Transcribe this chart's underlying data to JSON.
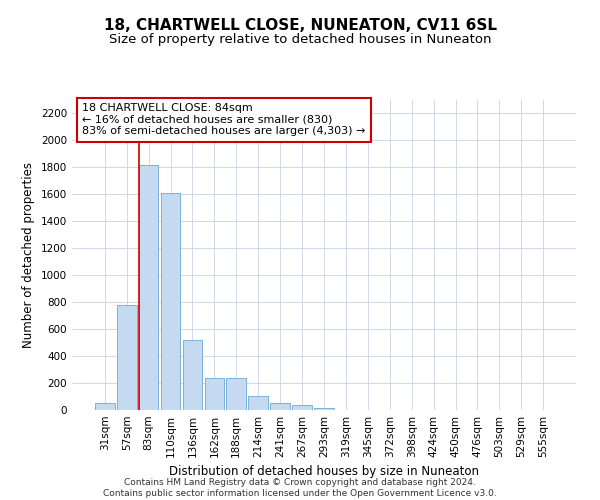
{
  "title": "18, CHARTWELL CLOSE, NUNEATON, CV11 6SL",
  "subtitle": "Size of property relative to detached houses in Nuneaton",
  "xlabel": "Distribution of detached houses by size in Nuneaton",
  "ylabel": "Number of detached properties",
  "categories": [
    "31sqm",
    "57sqm",
    "83sqm",
    "110sqm",
    "136sqm",
    "162sqm",
    "188sqm",
    "214sqm",
    "241sqm",
    "267sqm",
    "293sqm",
    "319sqm",
    "345sqm",
    "372sqm",
    "398sqm",
    "424sqm",
    "450sqm",
    "476sqm",
    "503sqm",
    "529sqm",
    "555sqm"
  ],
  "values": [
    55,
    780,
    1820,
    1610,
    520,
    240,
    235,
    105,
    55,
    38,
    18,
    0,
    0,
    0,
    0,
    0,
    0,
    0,
    0,
    0,
    0
  ],
  "bar_color": "#c5d9f0",
  "bar_edge_color": "#6aabd2",
  "vline_color": "#cc0000",
  "annotation_text": "18 CHARTWELL CLOSE: 84sqm\n← 16% of detached houses are smaller (830)\n83% of semi-detached houses are larger (4,303) →",
  "annotation_box_color": "#ffffff",
  "annotation_box_edge": "#cc0000",
  "footer_text": "Contains HM Land Registry data © Crown copyright and database right 2024.\nContains public sector information licensed under the Open Government Licence v3.0.",
  "ylim": [
    0,
    2300
  ],
  "yticks": [
    0,
    200,
    400,
    600,
    800,
    1000,
    1200,
    1400,
    1600,
    1800,
    2000,
    2200
  ],
  "title_fontsize": 11,
  "subtitle_fontsize": 9.5,
  "axis_label_fontsize": 8.5,
  "tick_fontsize": 7.5,
  "footer_fontsize": 6.5,
  "annotation_fontsize": 8,
  "background_color": "#ffffff",
  "grid_color": "#d0d8e8"
}
